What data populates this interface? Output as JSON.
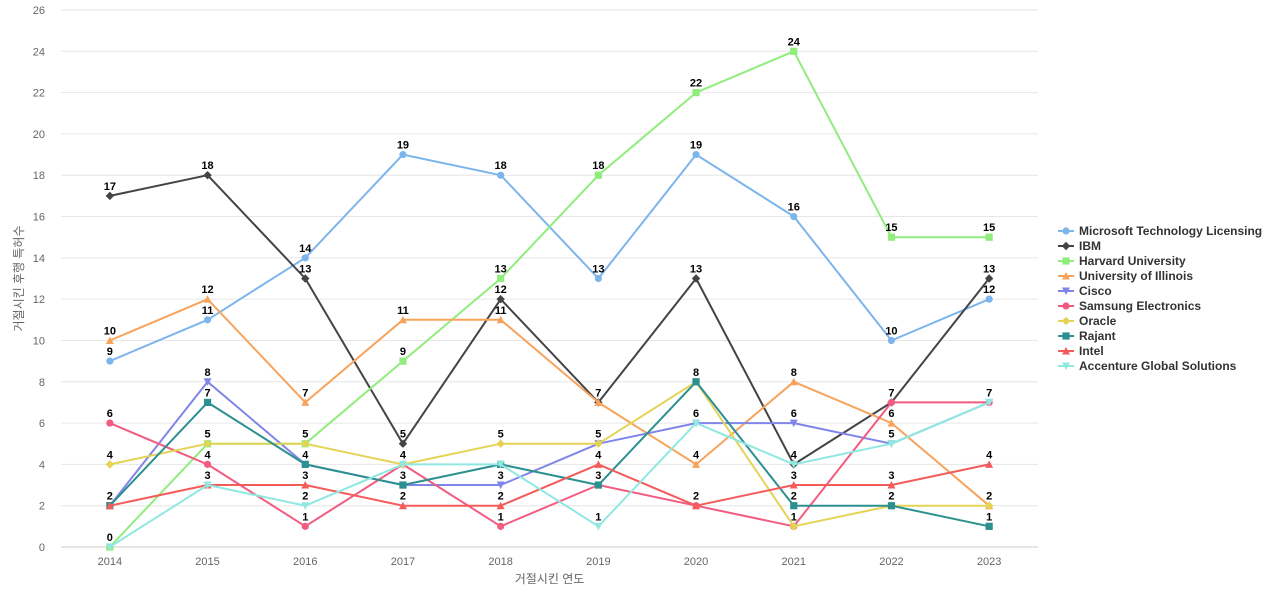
{
  "chart_data": {
    "type": "line",
    "title": "",
    "xlabel": "거절시킨 연도",
    "ylabel": "거절시킨 후행 특허수",
    "x": [
      "2014",
      "2015",
      "2016",
      "2017",
      "2018",
      "2019",
      "2020",
      "2021",
      "2022",
      "2023"
    ],
    "ylim": [
      0,
      26
    ],
    "yticks": [
      0,
      2,
      4,
      6,
      8,
      10,
      12,
      14,
      16,
      18,
      20,
      22,
      24,
      26
    ],
    "grid": true,
    "legend_position": "right",
    "series": [
      {
        "name": "Microsoft Technology Licensing",
        "color": "#7cb5ec",
        "marker": "circle",
        "values": [
          9,
          11,
          14,
          19,
          18,
          13,
          19,
          16,
          10,
          12
        ]
      },
      {
        "name": "IBM",
        "color": "#434348",
        "marker": "diamond",
        "values": [
          17,
          18,
          13,
          5,
          12,
          7,
          13,
          4,
          7,
          13
        ]
      },
      {
        "name": "Harvard University",
        "color": "#90ed7d",
        "marker": "square",
        "values": [
          0,
          5,
          5,
          9,
          13,
          18,
          22,
          24,
          15,
          15
        ]
      },
      {
        "name": "University of Illinois",
        "color": "#f7a35c",
        "marker": "triangle",
        "values": [
          10,
          12,
          7,
          11,
          11,
          7,
          4,
          8,
          6,
          2
        ]
      },
      {
        "name": "Cisco",
        "color": "#8085e9",
        "marker": "triangle-down",
        "values": [
          2,
          8,
          4,
          3,
          3,
          5,
          6,
          6,
          5,
          7
        ]
      },
      {
        "name": "Samsung Electronics",
        "color": "#f15c80",
        "marker": "circle",
        "values": [
          6,
          4,
          1,
          4,
          1,
          3,
          2,
          1,
          7,
          7
        ]
      },
      {
        "name": "Oracle",
        "color": "#e4d354",
        "marker": "diamond",
        "values": [
          4,
          5,
          5,
          4,
          5,
          5,
          8,
          1,
          2,
          2
        ]
      },
      {
        "name": "Rajant",
        "color": "#2b908f",
        "marker": "square",
        "values": [
          2,
          7,
          4,
          3,
          4,
          3,
          8,
          2,
          2,
          1
        ]
      },
      {
        "name": "Intel",
        "color": "#f45b5b",
        "marker": "triangle",
        "values": [
          2,
          3,
          3,
          2,
          2,
          4,
          2,
          3,
          3,
          4
        ]
      },
      {
        "name": "Accenture Global Solutions",
        "color": "#91e8e1",
        "marker": "triangle-down",
        "values": [
          0,
          3,
          2,
          4,
          4,
          1,
          6,
          4,
          5,
          7
        ]
      }
    ],
    "data_labels": [
      {
        "x": "2014",
        "y": 17,
        "text": "17"
      },
      {
        "x": "2014",
        "y": 10,
        "text": "10"
      },
      {
        "x": "2014",
        "y": 9,
        "text": "9"
      },
      {
        "x": "2014",
        "y": 6,
        "text": "6"
      },
      {
        "x": "2014",
        "y": 4,
        "text": "4"
      },
      {
        "x": "2014",
        "y": 2,
        "text": "2"
      },
      {
        "x": "2014",
        "y": 0,
        "text": "0"
      },
      {
        "x": "2015",
        "y": 18,
        "text": "18"
      },
      {
        "x": "2015",
        "y": 12,
        "text": "12"
      },
      {
        "x": "2015",
        "y": 11,
        "text": "11"
      },
      {
        "x": "2015",
        "y": 8,
        "text": "8"
      },
      {
        "x": "2015",
        "y": 7,
        "text": "7"
      },
      {
        "x": "2015",
        "y": 5,
        "text": "5"
      },
      {
        "x": "2015",
        "y": 4,
        "text": "4"
      },
      {
        "x": "2015",
        "y": 3,
        "text": "3"
      },
      {
        "x": "2016",
        "y": 14,
        "text": "14"
      },
      {
        "x": "2016",
        "y": 13,
        "text": "13"
      },
      {
        "x": "2016",
        "y": 7,
        "text": "7"
      },
      {
        "x": "2016",
        "y": 5,
        "text": "5"
      },
      {
        "x": "2016",
        "y": 4,
        "text": "4"
      },
      {
        "x": "2016",
        "y": 3,
        "text": "3"
      },
      {
        "x": "2016",
        "y": 2,
        "text": "2"
      },
      {
        "x": "2016",
        "y": 1,
        "text": "1"
      },
      {
        "x": "2017",
        "y": 19,
        "text": "19"
      },
      {
        "x": "2017",
        "y": 11,
        "text": "11"
      },
      {
        "x": "2017",
        "y": 9,
        "text": "9"
      },
      {
        "x": "2017",
        "y": 5,
        "text": "5"
      },
      {
        "x": "2017",
        "y": 4,
        "text": "4"
      },
      {
        "x": "2017",
        "y": 3,
        "text": "3"
      },
      {
        "x": "2017",
        "y": 2,
        "text": "2"
      },
      {
        "x": "2018",
        "y": 18,
        "text": "18"
      },
      {
        "x": "2018",
        "y": 13,
        "text": "13"
      },
      {
        "x": "2018",
        "y": 12,
        "text": "12"
      },
      {
        "x": "2018",
        "y": 11,
        "text": "11"
      },
      {
        "x": "2018",
        "y": 5,
        "text": "5"
      },
      {
        "x": "2018",
        "y": 3,
        "text": "3"
      },
      {
        "x": "2018",
        "y": 2,
        "text": "2"
      },
      {
        "x": "2018",
        "y": 1,
        "text": "1"
      },
      {
        "x": "2019",
        "y": 18,
        "text": "18"
      },
      {
        "x": "2019",
        "y": 13,
        "text": "13"
      },
      {
        "x": "2019",
        "y": 7,
        "text": "7"
      },
      {
        "x": "2019",
        "y": 5,
        "text": "5"
      },
      {
        "x": "2019",
        "y": 4,
        "text": "4"
      },
      {
        "x": "2019",
        "y": 3,
        "text": "3"
      },
      {
        "x": "2019",
        "y": 1,
        "text": "1"
      },
      {
        "x": "2020",
        "y": 22,
        "text": "22"
      },
      {
        "x": "2020",
        "y": 19,
        "text": "19"
      },
      {
        "x": "2020",
        "y": 13,
        "text": "13"
      },
      {
        "x": "2020",
        "y": 8,
        "text": "8"
      },
      {
        "x": "2020",
        "y": 6,
        "text": "6"
      },
      {
        "x": "2020",
        "y": 4,
        "text": "4"
      },
      {
        "x": "2020",
        "y": 2,
        "text": "2"
      },
      {
        "x": "2021",
        "y": 24,
        "text": "24"
      },
      {
        "x": "2021",
        "y": 16,
        "text": "16"
      },
      {
        "x": "2021",
        "y": 8,
        "text": "8"
      },
      {
        "x": "2021",
        "y": 6,
        "text": "6"
      },
      {
        "x": "2021",
        "y": 4,
        "text": "4"
      },
      {
        "x": "2021",
        "y": 3,
        "text": "3"
      },
      {
        "x": "2021",
        "y": 2,
        "text": "2"
      },
      {
        "x": "2021",
        "y": 1,
        "text": "1"
      },
      {
        "x": "2022",
        "y": 15,
        "text": "15"
      },
      {
        "x": "2022",
        "y": 10,
        "text": "10"
      },
      {
        "x": "2022",
        "y": 7,
        "text": "7"
      },
      {
        "x": "2022",
        "y": 6,
        "text": "6"
      },
      {
        "x": "2022",
        "y": 5,
        "text": "5"
      },
      {
        "x": "2022",
        "y": 3,
        "text": "3"
      },
      {
        "x": "2022",
        "y": 2,
        "text": "2"
      },
      {
        "x": "2023",
        "y": 15,
        "text": "15"
      },
      {
        "x": "2023",
        "y": 13,
        "text": "13"
      },
      {
        "x": "2023",
        "y": 12,
        "text": "12"
      },
      {
        "x": "2023",
        "y": 7,
        "text": "7"
      },
      {
        "x": "2023",
        "y": 4,
        "text": "4"
      },
      {
        "x": "2023",
        "y": 2,
        "text": "2"
      },
      {
        "x": "2023",
        "y": 1,
        "text": "1"
      }
    ]
  }
}
